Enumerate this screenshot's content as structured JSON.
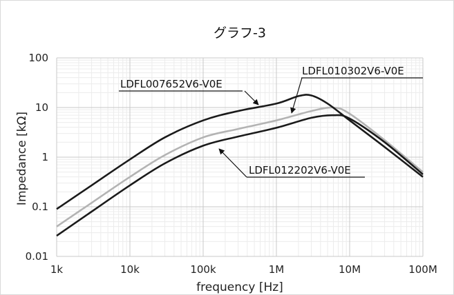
{
  "chart_data": {
    "type": "line",
    "title": "グラフ-3",
    "xlabel": "frequency [Hz]",
    "ylabel": "Impedance [kΩ]",
    "x_scale": "log",
    "y_scale": "log",
    "xlim": [
      1000,
      100000000
    ],
    "ylim": [
      0.01,
      100
    ],
    "x_ticks": [
      1000,
      10000,
      100000,
      1000000,
      10000000,
      100000000
    ],
    "x_tick_labels": [
      "1k",
      "10k",
      "100k",
      "1M",
      "10M",
      "100M"
    ],
    "y_ticks": [
      0.01,
      0.1,
      1,
      10,
      100
    ],
    "y_tick_labels": [
      "0.01",
      "0.1",
      "1",
      "10",
      "100"
    ],
    "grid": true,
    "series": [
      {
        "name": "LDFL007652V6-V0E",
        "color": "#1a1a1a",
        "x": [
          1000,
          3000,
          10000,
          30000,
          100000,
          300000,
          1000000,
          2000000,
          3000000,
          5000000,
          10000000,
          30000000,
          100000000
        ],
        "y": [
          0.09,
          0.27,
          0.9,
          2.5,
          5.5,
          8.5,
          12,
          17,
          17.5,
          12,
          5.5,
          1.6,
          0.4
        ]
      },
      {
        "name": "LDFL010302V6-V0E",
        "color": "#b3b3b3",
        "x": [
          1000,
          3000,
          10000,
          30000,
          100000,
          300000,
          1000000,
          3000000,
          6000000,
          10000000,
          30000000,
          100000000
        ],
        "y": [
          0.04,
          0.12,
          0.4,
          1.1,
          2.5,
          3.7,
          5.5,
          8.5,
          10,
          7.5,
          2.2,
          0.5
        ]
      },
      {
        "name": "LDFL012202V6-V0E",
        "color": "#1a1a1a",
        "x": [
          1000,
          3000,
          10000,
          30000,
          100000,
          300000,
          1000000,
          3000000,
          6000000,
          10000000,
          30000000,
          100000000
        ],
        "y": [
          0.026,
          0.08,
          0.27,
          0.75,
          1.7,
          2.6,
          3.9,
          6.2,
          7,
          6,
          2,
          0.45
        ]
      }
    ],
    "annotations": [
      {
        "text": "LDFL007652V6-V0E",
        "series": 0
      },
      {
        "text": "LDFL010302V6-V0E",
        "series": 1
      },
      {
        "text": "LDFL012202V6-V0E",
        "series": 2
      }
    ]
  }
}
